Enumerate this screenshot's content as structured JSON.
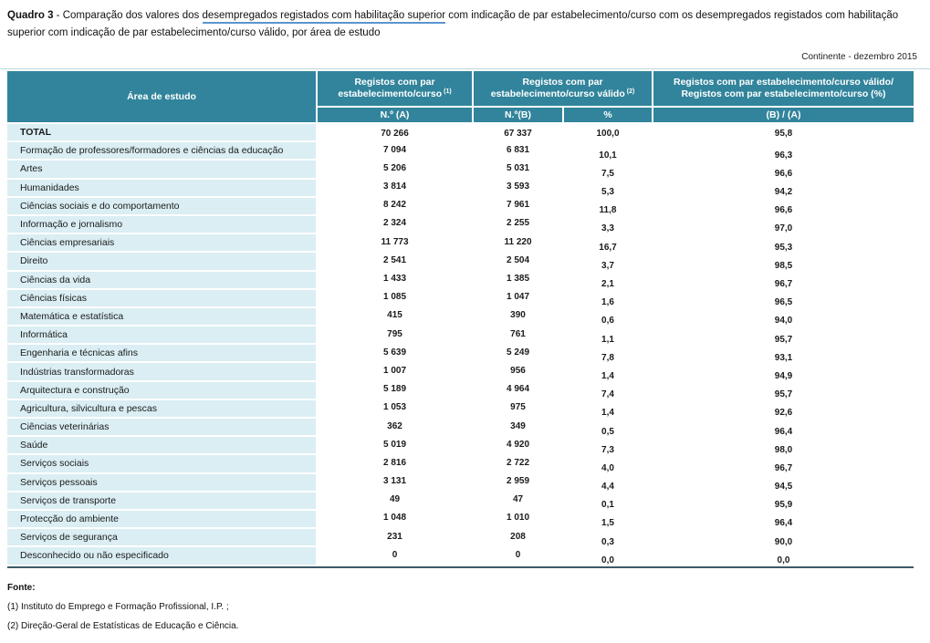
{
  "title": {
    "label": "Quadro 3",
    "separator": " - ",
    "before": "Comparação dos valores dos ",
    "underlined": "desempregados registados com habilitação superior",
    "after": " com indicação de par estabelecimento/curso com os desempregados registados com habilitação superior com indicação de par estabelecimento/curso válido, por área de estudo"
  },
  "context_note": "Continente - dezembro 2015",
  "table": {
    "col_headers": {
      "area": "Área de estudo",
      "col_a": {
        "line1": "Registos com par",
        "line2": "estabelecimento/curso",
        "sup": "(1)",
        "sub": "N.º (A)"
      },
      "col_b": {
        "line1": "Registos com par",
        "line2": "estabelecimento/curso válido",
        "sup": "(2)",
        "sub_b": "N.º(B)",
        "sub_pct": "%"
      },
      "col_ratio": {
        "line1": "Registos com par estabelecimento/curso válido/",
        "line2": "Registos com par estabelecimento/curso (%)",
        "sub": "(B) / (A)"
      }
    },
    "rows": [
      {
        "area": "TOTAL",
        "a": "70 266",
        "b": "67 337",
        "pct": "100,0",
        "ratio": "95,8",
        "total": true
      },
      {
        "area": "Formação de professores/formadores e ciências da educação",
        "a": "7 094",
        "b": "6 831",
        "pct": "10,1",
        "ratio": "96,3"
      },
      {
        "area": "Artes",
        "a": "5 206",
        "b": "5 031",
        "pct": "7,5",
        "ratio": "96,6"
      },
      {
        "area": "Humanidades",
        "a": "3 814",
        "b": "3 593",
        "pct": "5,3",
        "ratio": "94,2"
      },
      {
        "area": "Ciências sociais e do comportamento",
        "a": "8 242",
        "b": "7 961",
        "pct": "11,8",
        "ratio": "96,6"
      },
      {
        "area": "Informação e jornalismo",
        "a": "2 324",
        "b": "2 255",
        "pct": "3,3",
        "ratio": "97,0"
      },
      {
        "area": "Ciências empresariais",
        "a": "11 773",
        "b": "11 220",
        "pct": "16,7",
        "ratio": "95,3"
      },
      {
        "area": "Direito",
        "a": "2 541",
        "b": "2 504",
        "pct": "3,7",
        "ratio": "98,5"
      },
      {
        "area": "Ciências da vida",
        "a": "1 433",
        "b": "1 385",
        "pct": "2,1",
        "ratio": "96,7"
      },
      {
        "area": "Ciências físicas",
        "a": "1 085",
        "b": "1 047",
        "pct": "1,6",
        "ratio": "96,5"
      },
      {
        "area": "Matemática e estatística",
        "a": "415",
        "b": "390",
        "pct": "0,6",
        "ratio": "94,0"
      },
      {
        "area": "Informática",
        "a": "795",
        "b": "761",
        "pct": "1,1",
        "ratio": "95,7"
      },
      {
        "area": "Engenharia e técnicas afins",
        "a": "5 639",
        "b": "5 249",
        "pct": "7,8",
        "ratio": "93,1"
      },
      {
        "area": "Indústrias transformadoras",
        "a": "1 007",
        "b": "956",
        "pct": "1,4",
        "ratio": "94,9"
      },
      {
        "area": "Arquitectura e construção",
        "a": "5 189",
        "b": "4 964",
        "pct": "7,4",
        "ratio": "95,7"
      },
      {
        "area": "Agricultura, silvicultura e pescas",
        "a": "1 053",
        "b": "975",
        "pct": "1,4",
        "ratio": "92,6"
      },
      {
        "area": "Ciências veterinárias",
        "a": "362",
        "b": "349",
        "pct": "0,5",
        "ratio": "96,4"
      },
      {
        "area": "Saúde",
        "a": "5 019",
        "b": "4 920",
        "pct": "7,3",
        "ratio": "98,0"
      },
      {
        "area": "Serviços sociais",
        "a": "2 816",
        "b": "2 722",
        "pct": "4,0",
        "ratio": "96,7"
      },
      {
        "area": "Serviços pessoais",
        "a": "3 131",
        "b": "2 959",
        "pct": "4,4",
        "ratio": "94,5"
      },
      {
        "area": "Serviços de transporte",
        "a": "49",
        "b": "47",
        "pct": "0,1",
        "ratio": "95,9"
      },
      {
        "area": "Protecção do ambiente",
        "a": "1 048",
        "b": "1 010",
        "pct": "1,5",
        "ratio": "96,4"
      },
      {
        "area": "Serviços de segurança",
        "a": "231",
        "b": "208",
        "pct": "0,3",
        "ratio": "90,0"
      },
      {
        "area": "Desconhecido ou não especificado",
        "a": "0",
        "b": "0",
        "pct": "0,0",
        "ratio": "0,0"
      }
    ]
  },
  "footer": {
    "fonte_label": "Fonte:",
    "source1": "(1) Instituto do Emprego e Formação Profissional, I.P. ;",
    "source2": "(2) Direção-Geral de Estatísticas de Educação e Ciência."
  },
  "colors": {
    "header_teal": "#31849B",
    "row_fill": "#DAEEF3",
    "underline_blue": "#5B95CF",
    "bottom_border": "#3D5A68"
  }
}
